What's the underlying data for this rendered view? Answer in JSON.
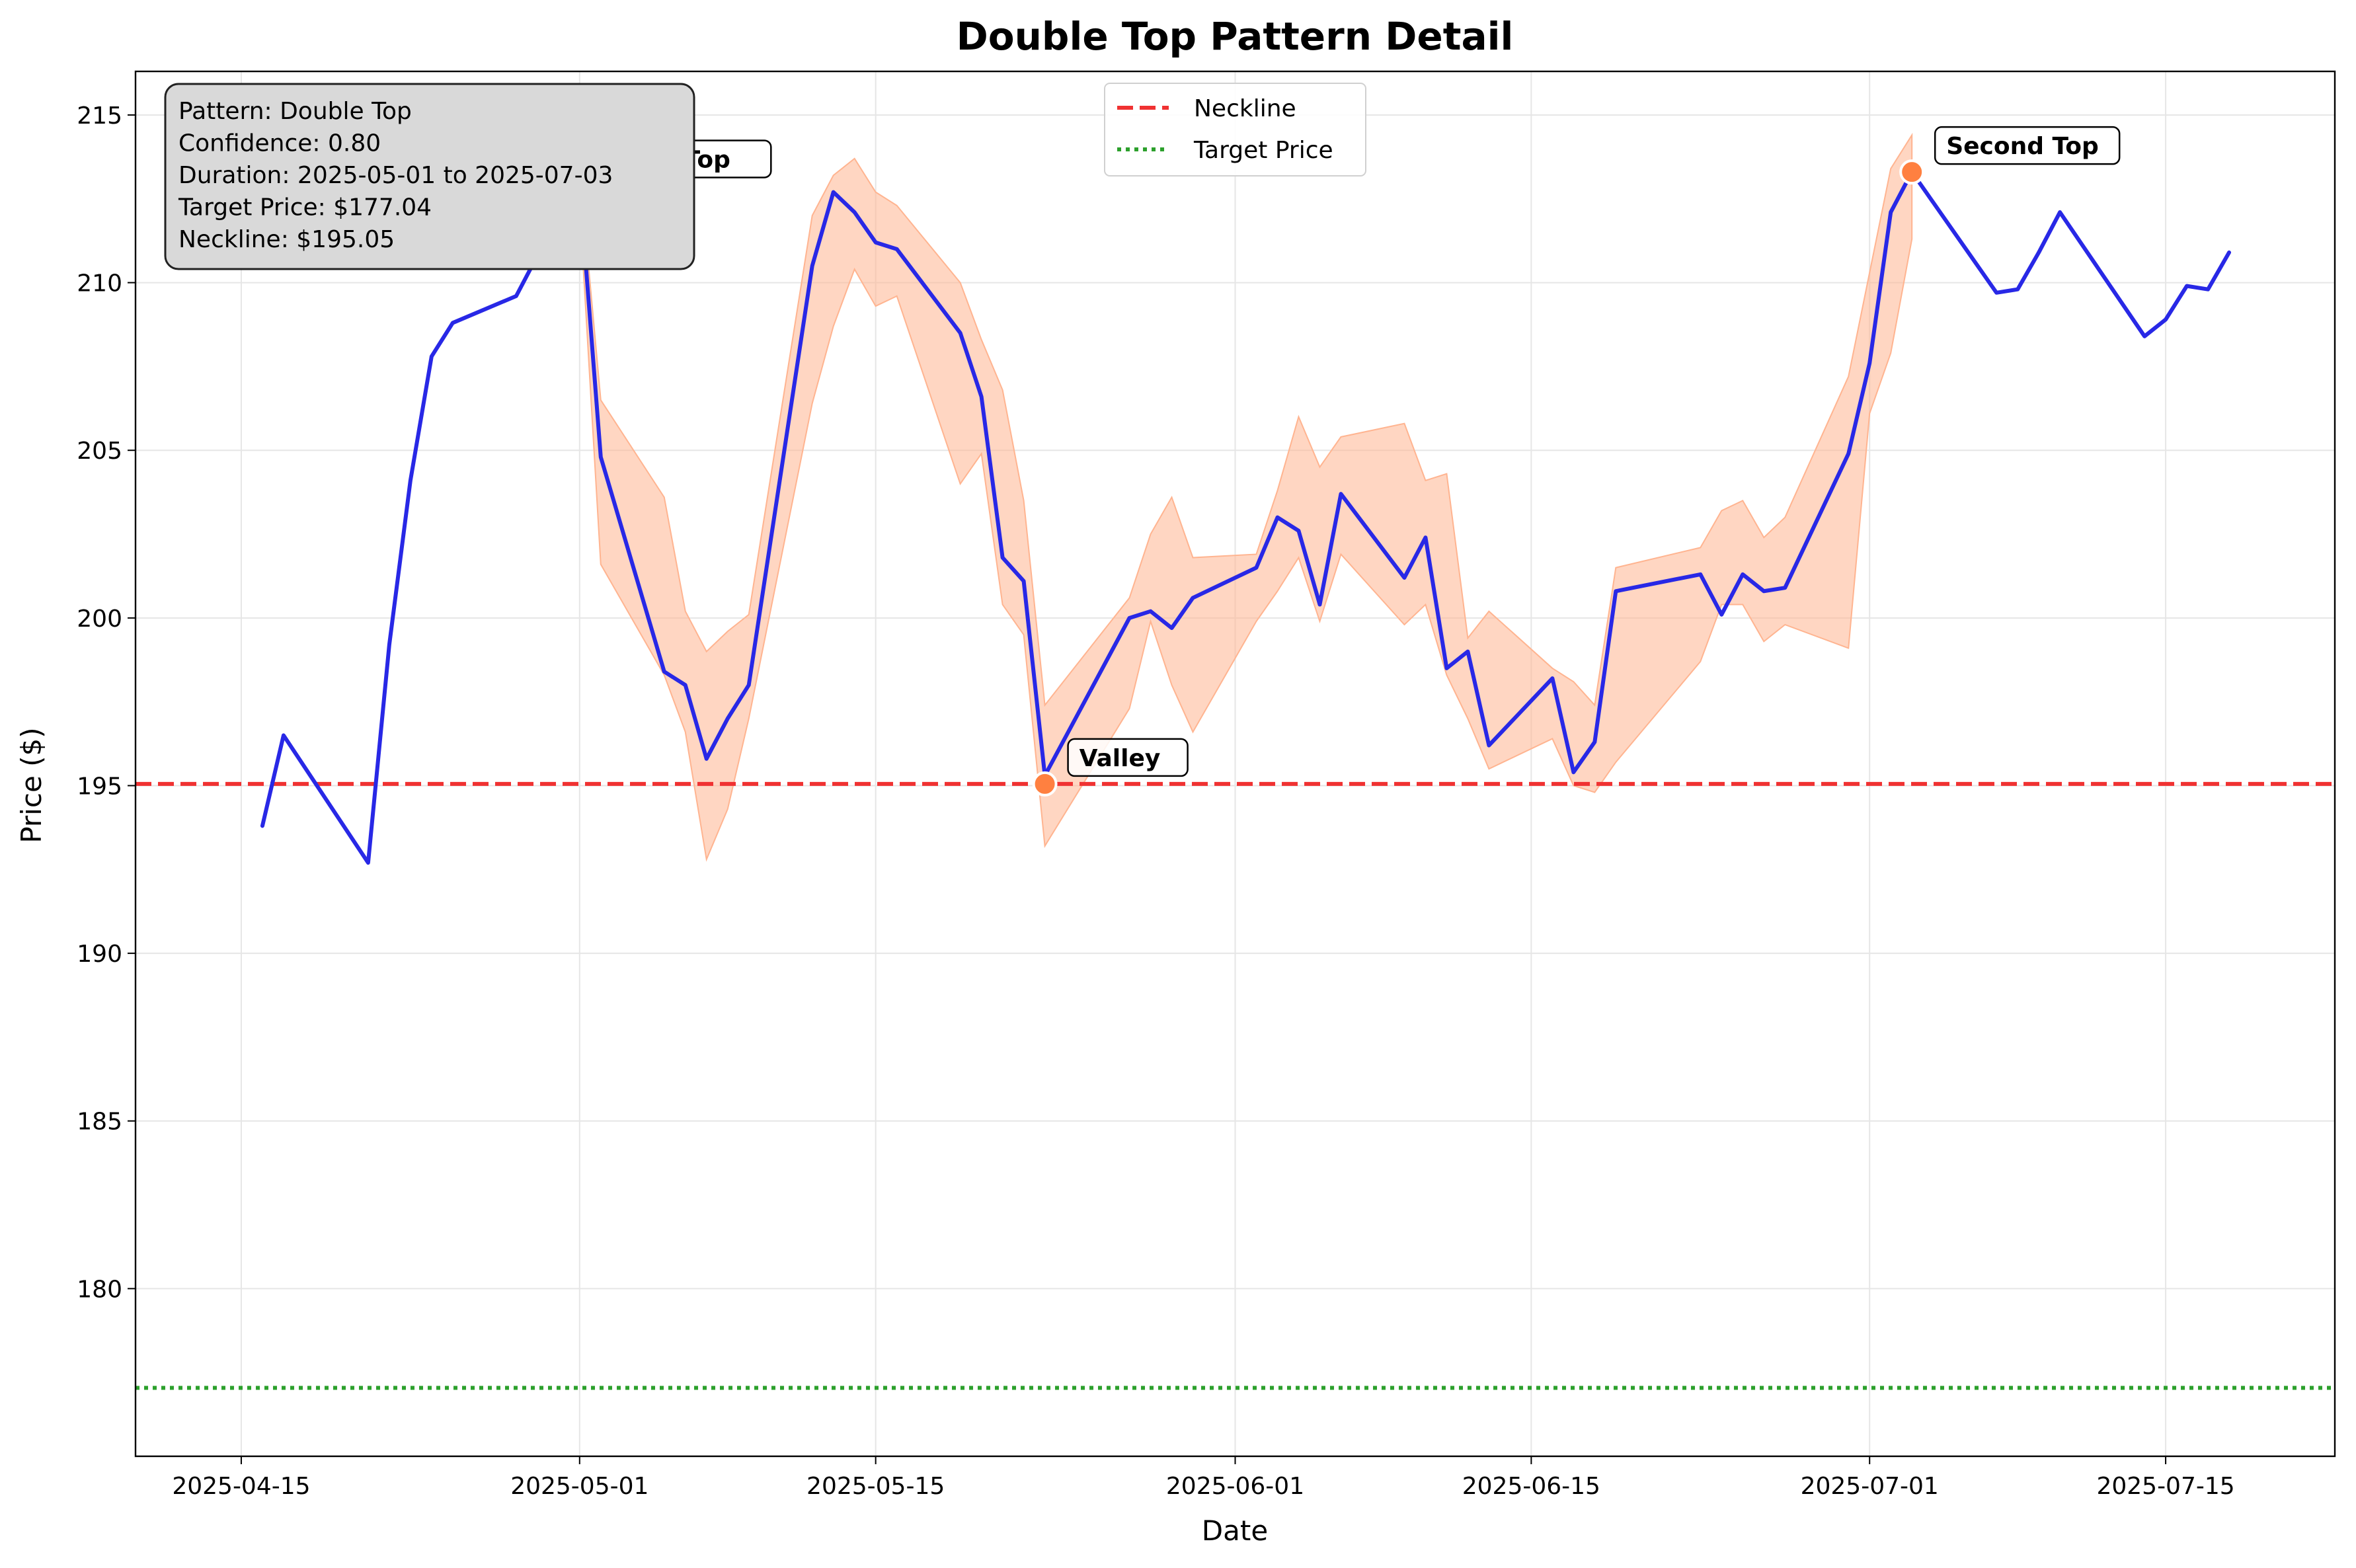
{
  "chart_data": {
    "type": "line",
    "title": "Double Top Pattern Detail",
    "xlabel": "Date",
    "ylabel": "Price ($)",
    "xlim": [
      "2025-04-10",
      "2025-07-23"
    ],
    "ylim": [
      175,
      216.3
    ],
    "grid": true,
    "x_ticks": [
      "2025-04-15",
      "2025-05-01",
      "2025-05-15",
      "2025-06-01",
      "2025-06-15",
      "2025-07-01",
      "2025-07-15"
    ],
    "y_ticks": [
      180,
      185,
      190,
      195,
      200,
      205,
      210,
      215
    ],
    "series": [
      {
        "name": "",
        "color": "#2828e6",
        "x": [
          "2025-04-16",
          "2025-04-17",
          "2025-04-21",
          "2025-04-22",
          "2025-04-23",
          "2025-04-24",
          "2025-04-25",
          "2025-04-28",
          "2025-04-29",
          "2025-04-30",
          "2025-05-01",
          "2025-05-02",
          "2025-05-05",
          "2025-05-06",
          "2025-05-07",
          "2025-05-08",
          "2025-05-09",
          "2025-05-12",
          "2025-05-13",
          "2025-05-14",
          "2025-05-15",
          "2025-05-16",
          "2025-05-19",
          "2025-05-20",
          "2025-05-21",
          "2025-05-22",
          "2025-05-23",
          "2025-05-27",
          "2025-05-28",
          "2025-05-29",
          "2025-05-30",
          "2025-06-02",
          "2025-06-03",
          "2025-06-04",
          "2025-06-05",
          "2025-06-06",
          "2025-06-09",
          "2025-06-10",
          "2025-06-11",
          "2025-06-12",
          "2025-06-13",
          "2025-06-16",
          "2025-06-17",
          "2025-06-18",
          "2025-06-19",
          "2025-06-23",
          "2025-06-24",
          "2025-06-25",
          "2025-06-26",
          "2025-06-27",
          "2025-06-30",
          "2025-07-01",
          "2025-07-02",
          "2025-07-03",
          "2025-07-07",
          "2025-07-08",
          "2025-07-09",
          "2025-07-10",
          "2025-07-14",
          "2025-07-15",
          "2025-07-16",
          "2025-07-17",
          "2025-07-18"
        ],
        "values": [
          193.8,
          196.5,
          192.7,
          199.2,
          204.1,
          207.8,
          208.8,
          209.6,
          210.8,
          212.0,
          212.9,
          204.8,
          198.4,
          198.0,
          195.8,
          197.0,
          198.0,
          210.5,
          212.7,
          212.1,
          211.2,
          211.0,
          208.5,
          206.6,
          201.8,
          201.1,
          195.3,
          200.0,
          200.2,
          199.7,
          200.6,
          201.5,
          203.0,
          202.6,
          200.4,
          203.7,
          201.2,
          202.4,
          198.5,
          199.0,
          196.2,
          198.2,
          195.4,
          196.3,
          200.8,
          201.3,
          200.1,
          201.3,
          200.8,
          200.9,
          204.9,
          207.6,
          212.1,
          213.3,
          209.7,
          209.8,
          210.9,
          212.1,
          208.4,
          208.9,
          209.9,
          209.8,
          210.9
        ]
      }
    ],
    "band": {
      "color": "#ffb490",
      "x": [
        "2025-05-01",
        "2025-05-02",
        "2025-05-05",
        "2025-05-06",
        "2025-05-07",
        "2025-05-08",
        "2025-05-09",
        "2025-05-12",
        "2025-05-13",
        "2025-05-14",
        "2025-05-15",
        "2025-05-16",
        "2025-05-19",
        "2025-05-20",
        "2025-05-21",
        "2025-05-22",
        "2025-05-23",
        "2025-05-27",
        "2025-05-28",
        "2025-05-29",
        "2025-05-30",
        "2025-06-02",
        "2025-06-03",
        "2025-06-04",
        "2025-06-05",
        "2025-06-06",
        "2025-06-09",
        "2025-06-10",
        "2025-06-11",
        "2025-06-12",
        "2025-06-13",
        "2025-06-16",
        "2025-06-17",
        "2025-06-18",
        "2025-06-19",
        "2025-06-23",
        "2025-06-24",
        "2025-06-25",
        "2025-06-26",
        "2025-06-27",
        "2025-06-30",
        "2025-07-01",
        "2025-07-02",
        "2025-07-03"
      ],
      "upper": [
        213.4,
        206.5,
        203.6,
        200.2,
        199.0,
        199.6,
        200.1,
        212.0,
        213.2,
        213.7,
        212.7,
        212.3,
        210.0,
        208.3,
        206.8,
        203.5,
        197.4,
        200.6,
        202.5,
        203.6,
        201.8,
        201.9,
        203.8,
        206.0,
        204.5,
        205.4,
        205.8,
        204.1,
        204.3,
        199.4,
        200.2,
        198.5,
        198.1,
        197.4,
        201.5,
        202.1,
        203.2,
        203.5,
        202.4,
        203.0,
        207.2,
        210.3,
        213.4,
        214.4
      ],
      "lower": [
        212.3,
        201.6,
        198.3,
        196.6,
        192.8,
        194.3,
        197.0,
        206.4,
        208.7,
        210.4,
        209.3,
        209.6,
        204.0,
        204.9,
        200.4,
        199.5,
        193.2,
        197.3,
        199.9,
        198.0,
        196.6,
        199.9,
        200.8,
        201.8,
        199.9,
        201.9,
        199.8,
        200.4,
        198.3,
        197.0,
        195.5,
        196.4,
        195.0,
        194.8,
        195.7,
        198.7,
        200.4,
        200.4,
        199.3,
        199.8,
        199.1,
        206.1,
        207.9,
        211.3
      ]
    },
    "hlines": [
      {
        "name": "Neckline",
        "value": 195.05,
        "color": "#f03232",
        "style": "dashed"
      },
      {
        "name": "Target Price",
        "value": 177.04,
        "color": "#2ca02c",
        "style": "dotted"
      }
    ],
    "markers": [
      {
        "label": "First Top",
        "x": "2025-05-01",
        "y": 212.9
      },
      {
        "label": "Valley",
        "x": "2025-05-23",
        "y": 195.05
      },
      {
        "label": "Second Top",
        "x": "2025-07-03",
        "y": 213.3
      }
    ],
    "marker_color": "#ff8040",
    "legend": {
      "placement": "top-center",
      "entries": [
        "Neckline",
        "Target Price"
      ]
    },
    "info_box": {
      "placement": "top-left",
      "lines": [
        "Pattern: Double Top",
        "Confidence: 0.80",
        "Duration: 2025-05-01 to 2025-07-03",
        "Target Price: $177.04",
        "Neckline: $195.05"
      ]
    }
  }
}
